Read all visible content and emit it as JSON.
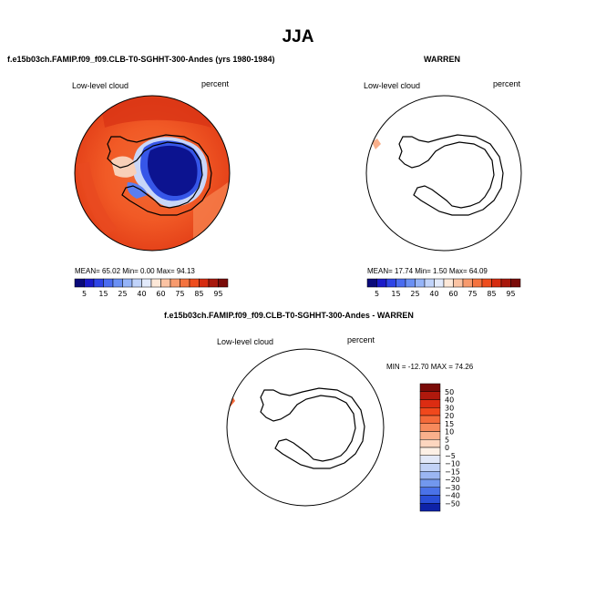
{
  "page": {
    "title": "JJA"
  },
  "panels": [
    {
      "id": "model",
      "title": "f.e15b03ch.FAMIP.f09_f09.CLB-T0-SGHHT-300-Andes (yrs 1980-1984)",
      "variable": "Low-level cloud",
      "units": "percent",
      "stats_text": "MEAN=  65.02   Min=     0.00   Max=   94.13"
    },
    {
      "id": "obs",
      "title": "WARREN",
      "variable": "Low-level cloud",
      "units": "percent",
      "stats_text": "MEAN=  17.74   Min=     1.50   Max=   64.09"
    },
    {
      "id": "diff",
      "title": "f.e15b03ch.FAMIP.f09_f09.CLB-T0-SGHHT-300-Andes - WARREN",
      "variable": "Low-level cloud",
      "units": "percent",
      "stats_text": "MIN = -12.70 MAX =  74.26"
    }
  ],
  "chart_data": [
    {
      "type": "heatmap",
      "projection": "south-polar-stereographic",
      "title": "f.e15b03ch.FAMIP.f09_f09.CLB-T0-SGHHT-300-Andes (yrs 1980-1984)",
      "variable": "Low-level cloud",
      "units": "percent",
      "stats": {
        "mean": 65.02,
        "min": 0.0,
        "max": 94.13
      },
      "colorbar": {
        "orientation": "horizontal",
        "levels": [
          5,
          10,
          15,
          20,
          25,
          30,
          40,
          50,
          60,
          70,
          75,
          80,
          85,
          90,
          95
        ],
        "tick_labels": [
          "5",
          "15",
          "25",
          "40",
          "60",
          "75",
          "85",
          "95"
        ],
        "colors": [
          "#0a0a7a",
          "#1a1ac8",
          "#2e44e6",
          "#4a6cf0",
          "#6a90f4",
          "#95b4f8",
          "#c0d3fa",
          "#e2eafb",
          "#fde8d8",
          "#fbc3a3",
          "#f79a6d",
          "#f4733f",
          "#ee4d1e",
          "#d62c10",
          "#a8180c",
          "#7a0b08"
        ]
      }
    },
    {
      "type": "heatmap",
      "projection": "south-polar-stereographic",
      "title": "WARREN",
      "variable": "Low-level cloud",
      "units": "percent",
      "stats": {
        "mean": 17.74,
        "min": 1.5,
        "max": 64.09
      },
      "colorbar": {
        "orientation": "horizontal",
        "levels": [
          5,
          10,
          15,
          20,
          25,
          30,
          40,
          50,
          60,
          70,
          75,
          80,
          85,
          90,
          95
        ],
        "tick_labels": [
          "5",
          "15",
          "25",
          "40",
          "60",
          "75",
          "85",
          "95"
        ],
        "colors": [
          "#0a0a7a",
          "#1a1ac8",
          "#2e44e6",
          "#4a6cf0",
          "#6a90f4",
          "#95b4f8",
          "#c0d3fa",
          "#e2eafb",
          "#fde8d8",
          "#fbc3a3",
          "#f79a6d",
          "#f4733f",
          "#ee4d1e",
          "#d62c10",
          "#a8180c",
          "#7a0b08"
        ]
      }
    },
    {
      "type": "heatmap",
      "projection": "south-polar-stereographic",
      "title": "f.e15b03ch.FAMIP.f09_f09.CLB-T0-SGHHT-300-Andes - WARREN",
      "variable": "Low-level cloud",
      "units": "percent",
      "stats": {
        "min": -12.7,
        "max": 74.26
      },
      "colorbar": {
        "orientation": "vertical",
        "levels": [
          50,
          40,
          30,
          20,
          15,
          10,
          5,
          0,
          -5,
          -10,
          -15,
          -20,
          -30,
          -40,
          -50
        ],
        "tick_labels": [
          "50",
          "40",
          "30",
          "20",
          "15",
          "10",
          "5",
          "0",
          "−5",
          "−10",
          "−15",
          "−20",
          "−30",
          "−40",
          "−50"
        ],
        "colors": [
          "#7a0b08",
          "#b0190d",
          "#dc2c12",
          "#f0481c",
          "#f46a3a",
          "#f78a5c",
          "#fab08c",
          "#fdd6bf",
          "#fdf0e6",
          "#e2e8f8",
          "#c2d2f6",
          "#9bb6f3",
          "#7298ee",
          "#4a72e8",
          "#2a4fd8",
          "#0e22a8"
        ]
      }
    }
  ]
}
